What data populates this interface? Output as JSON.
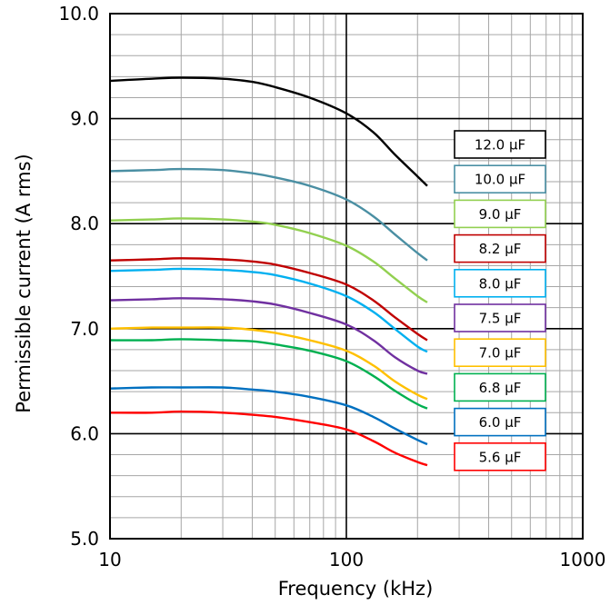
{
  "chart_data": {
    "type": "line",
    "xlabel": "Frequency (kHz)",
    "ylabel": "Permissible current  (A rms)",
    "x_scale": "log",
    "xlim": [
      10,
      1000
    ],
    "ylim": [
      5.0,
      10.0
    ],
    "x_ticks": [
      "10",
      "100",
      "1000"
    ],
    "y_ticks": [
      "5.0",
      "6.0",
      "7.0",
      "8.0",
      "9.0",
      "10.0"
    ],
    "grid": true,
    "legend_position": "right",
    "x": [
      10,
      15,
      20,
      30,
      40,
      50,
      70,
      100,
      130,
      160,
      200,
      220
    ],
    "series": [
      {
        "name": "12.0 μF",
        "color": "#000000",
        "values": [
          9.36,
          9.38,
          9.39,
          9.38,
          9.35,
          9.3,
          9.2,
          9.05,
          8.87,
          8.66,
          8.45,
          8.36
        ]
      },
      {
        "name": "10.0 μF",
        "color": "#4a8fa3",
        "values": [
          8.5,
          8.51,
          8.52,
          8.51,
          8.48,
          8.44,
          8.36,
          8.23,
          8.07,
          7.9,
          7.72,
          7.65
        ]
      },
      {
        "name": "9.0 μF",
        "color": "#92d050",
        "values": [
          8.03,
          8.04,
          8.05,
          8.04,
          8.02,
          7.99,
          7.91,
          7.79,
          7.64,
          7.48,
          7.31,
          7.25
        ]
      },
      {
        "name": "8.2 μF",
        "color": "#c00000",
        "values": [
          7.65,
          7.66,
          7.67,
          7.66,
          7.64,
          7.61,
          7.53,
          7.42,
          7.27,
          7.11,
          6.95,
          6.89
        ]
      },
      {
        "name": "8.0 μF",
        "color": "#00b0f0",
        "values": [
          7.55,
          7.56,
          7.57,
          7.56,
          7.54,
          7.51,
          7.43,
          7.31,
          7.16,
          7.0,
          6.83,
          6.78
        ]
      },
      {
        "name": "7.5 μF",
        "color": "#7030a0",
        "values": [
          7.27,
          7.28,
          7.29,
          7.28,
          7.26,
          7.23,
          7.15,
          7.04,
          6.89,
          6.73,
          6.6,
          6.57
        ]
      },
      {
        "name": "7.0 μF",
        "color": "#ffc000",
        "values": [
          7.0,
          7.01,
          7.01,
          7.01,
          6.99,
          6.96,
          6.89,
          6.79,
          6.65,
          6.5,
          6.37,
          6.33
        ]
      },
      {
        "name": "6.8 μF",
        "color": "#00b050",
        "values": [
          6.89,
          6.89,
          6.9,
          6.89,
          6.88,
          6.85,
          6.79,
          6.69,
          6.55,
          6.41,
          6.28,
          6.24
        ]
      },
      {
        "name": "6.0 μF",
        "color": "#0070c0",
        "values": [
          6.43,
          6.44,
          6.44,
          6.44,
          6.42,
          6.4,
          6.35,
          6.27,
          6.16,
          6.05,
          5.94,
          5.9
        ]
      },
      {
        "name": "5.6 μF",
        "color": "#ff0000",
        "values": [
          6.2,
          6.2,
          6.21,
          6.2,
          6.18,
          6.16,
          6.11,
          6.04,
          5.93,
          5.82,
          5.73,
          5.7
        ]
      }
    ]
  }
}
